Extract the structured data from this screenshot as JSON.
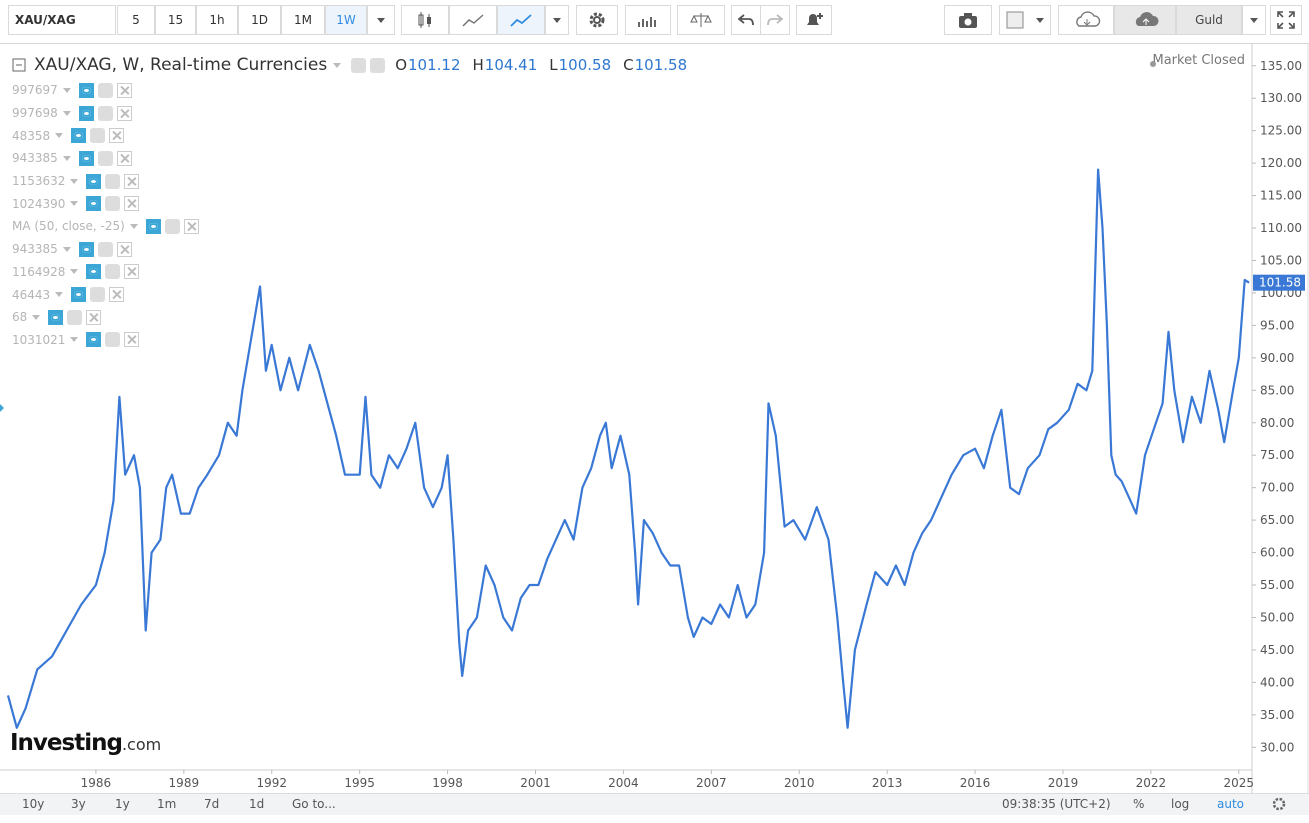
{
  "toolbar": {
    "symbol": "XAU/XAG",
    "intervals": [
      "5",
      "15",
      "1h",
      "1D",
      "1M",
      "1W"
    ],
    "language": "Guld"
  },
  "bottom_bar": {
    "ranges": [
      "10y",
      "3y",
      "1y",
      "1m",
      "7d",
      "1d"
    ],
    "goto": "Go to...",
    "time": "09:38:35 (UTC+2)",
    "options": [
      "%",
      "log",
      "auto"
    ]
  },
  "chart_data": {
    "type": "line",
    "title": "XAU/XAG, W, Real-time Currencies",
    "ohlc": {
      "labels": [
        "O",
        "H",
        "L",
        "C"
      ],
      "values": [
        101.12,
        104.41,
        100.58,
        101.58
      ]
    },
    "status": "Market Closed",
    "indicators": [
      "997697",
      "997698",
      "48358",
      "943385",
      "1153632",
      "1024390",
      "MA (50, close, -25)",
      "943385",
      "1164928",
      "46443",
      "68",
      "1031021"
    ],
    "watermark": {
      "brand": "Investing",
      "suffix": ".com"
    },
    "color": "#3a78d6",
    "grid": false,
    "xlim": [
      1983.0,
      2025.45
    ],
    "xticks": [
      1986,
      1989,
      1992,
      1995,
      1998,
      2001,
      2004,
      2007,
      2010,
      2013,
      2016,
      2019,
      2022,
      2025
    ],
    "ylim": [
      26.5,
      138.2
    ],
    "yticks": [
      {
        "value": 30,
        "label": "30.00"
      },
      {
        "value": 35,
        "label": "35.00"
      },
      {
        "value": 40,
        "label": "40.00"
      },
      {
        "value": 45,
        "label": "45.00"
      },
      {
        "value": 50,
        "label": "50.00"
      },
      {
        "value": 55,
        "label": "55.00"
      },
      {
        "value": 60,
        "label": "60.00"
      },
      {
        "value": 65,
        "label": "65.00"
      },
      {
        "value": 70,
        "label": "70.00"
      },
      {
        "value": 75,
        "label": "75.00"
      },
      {
        "value": 80,
        "label": "80.00"
      },
      {
        "value": 85,
        "label": "85.00"
      },
      {
        "value": 90,
        "label": "90.00"
      },
      {
        "value": 95,
        "label": "95.00"
      },
      {
        "value": 100,
        "label": "100.00"
      },
      {
        "value": 105,
        "label": "105.00"
      },
      {
        "value": 110,
        "label": "110.00"
      },
      {
        "value": 115,
        "label": "115.00"
      },
      {
        "value": 120,
        "label": "120.00"
      },
      {
        "value": 125,
        "label": "125.00"
      },
      {
        "value": 130,
        "label": "130.00"
      },
      {
        "value": 135,
        "label": "135.00"
      }
    ],
    "x": [
      1983.0,
      1983.3,
      1983.6,
      1984.0,
      1984.5,
      1985.0,
      1985.5,
      1986.0,
      1986.3,
      1986.6,
      1986.8,
      1987.0,
      1987.3,
      1987.5,
      1987.7,
      1987.9,
      1988.2,
      1988.4,
      1988.6,
      1988.9,
      1989.2,
      1989.5,
      1989.8,
      1990.2,
      1990.5,
      1990.8,
      1991.0,
      1991.3,
      1991.6,
      1991.8,
      1992.0,
      1992.3,
      1992.6,
      1992.9,
      1993.3,
      1993.6,
      1993.9,
      1994.2,
      1994.5,
      1994.8,
      1995.0,
      1995.2,
      1995.4,
      1995.7,
      1996.0,
      1996.3,
      1996.6,
      1996.9,
      1997.2,
      1997.5,
      1997.8,
      1998.0,
      1998.2,
      1998.4,
      1998.5,
      1998.7,
      1999.0,
      1999.3,
      1999.6,
      1999.9,
      2000.2,
      2000.5,
      2000.8,
      2001.1,
      2001.4,
      2001.7,
      2002.0,
      2002.3,
      2002.6,
      2002.9,
      2003.2,
      2003.4,
      2003.6,
      2003.9,
      2004.2,
      2004.4,
      2004.5,
      2004.7,
      2005.0,
      2005.3,
      2005.6,
      2005.9,
      2006.2,
      2006.4,
      2006.7,
      2007.0,
      2007.3,
      2007.6,
      2007.9,
      2008.2,
      2008.5,
      2008.8,
      2008.95,
      2009.2,
      2009.5,
      2009.8,
      2010.2,
      2010.6,
      2011.0,
      2011.3,
      2011.5,
      2011.65,
      2011.9,
      2012.3,
      2012.6,
      2013.0,
      2013.3,
      2013.6,
      2013.9,
      2014.2,
      2014.5,
      2014.8,
      2015.2,
      2015.6,
      2016.0,
      2016.3,
      2016.6,
      2016.9,
      2017.2,
      2017.5,
      2017.8,
      2018.2,
      2018.5,
      2018.8,
      2019.2,
      2019.5,
      2019.8,
      2020.0,
      2020.2,
      2020.35,
      2020.5,
      2020.65,
      2020.8,
      2021.0,
      2021.3,
      2021.5,
      2021.8,
      2022.1,
      2022.4,
      2022.6,
      2022.8,
      2023.1,
      2023.4,
      2023.7,
      2024.0,
      2024.3,
      2024.5,
      2024.8,
      2025.0,
      2025.2,
      2025.35
    ],
    "values": [
      38,
      33,
      36,
      42,
      44,
      48,
      52,
      55,
      60,
      68,
      84,
      72,
      75,
      70,
      48,
      60,
      62,
      70,
      72,
      66,
      66,
      70,
      72,
      75,
      80,
      78,
      85,
      93,
      101,
      88,
      92,
      85,
      90,
      85,
      92,
      88,
      83,
      78,
      72,
      72,
      72,
      84,
      72,
      70,
      75,
      73,
      76,
      80,
      70,
      67,
      70,
      75,
      62,
      46,
      41,
      48,
      50,
      58,
      55,
      50,
      48,
      53,
      55,
      55,
      59,
      62,
      65,
      62,
      70,
      73,
      78,
      80,
      73,
      78,
      72,
      60,
      52,
      65,
      63,
      60,
      58,
      58,
      50,
      47,
      50,
      49,
      52,
      50,
      55,
      50,
      52,
      60,
      83,
      78,
      64,
      65,
      62,
      67,
      62,
      50,
      40,
      33,
      45,
      52,
      57,
      55,
      58,
      55,
      60,
      63,
      65,
      68,
      72,
      75,
      76,
      73,
      78,
      82,
      70,
      69,
      73,
      75,
      79,
      80,
      82,
      86,
      85,
      88,
      119,
      110,
      95,
      75,
      72,
      71,
      68,
      66,
      75,
      79,
      83,
      94,
      85,
      77,
      84,
      80,
      88,
      82,
      77,
      85,
      90,
      102,
      101.58
    ]
  }
}
